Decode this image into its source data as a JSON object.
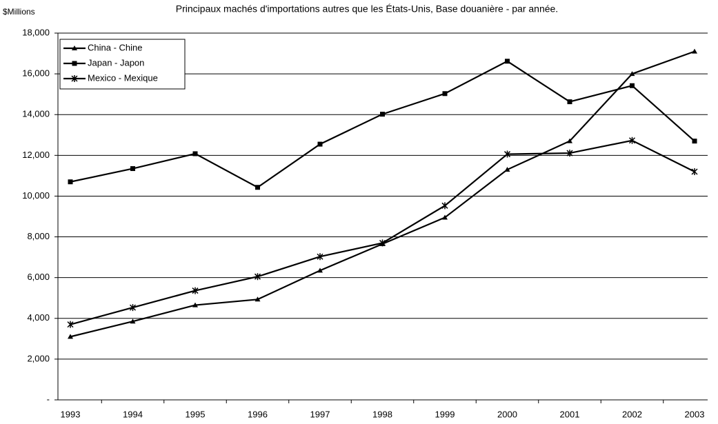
{
  "chart_data": {
    "type": "line",
    "title": "Principaux machés d'importations autres que les États-Unis,  Base douanière - par année.",
    "y_label": "$Millions",
    "categories": [
      "1993",
      "1994",
      "1995",
      "1996",
      "1997",
      "1998",
      "1999",
      "2000",
      "2001",
      "2002",
      "2003"
    ],
    "series": [
      {
        "name": "China - Chine",
        "color": "#000000",
        "marker": "triangle",
        "values": [
          3100,
          3850,
          4650,
          4930,
          6350,
          7650,
          8950,
          11300,
          12700,
          16000,
          17100
        ]
      },
      {
        "name": "Japan - Japon",
        "color": "#000000",
        "marker": "square",
        "values": [
          10700,
          11350,
          12080,
          10430,
          12550,
          14020,
          15030,
          16620,
          14630,
          15420,
          12700
        ]
      },
      {
        "name": "Mexico - Mexique",
        "color": "#000000",
        "marker": "asterisk",
        "values": [
          3700,
          4530,
          5360,
          6050,
          7030,
          7700,
          9530,
          12060,
          12110,
          12730,
          11200
        ]
      }
    ],
    "ylim": [
      0,
      18000
    ],
    "yticks": [
      {
        "value": 0,
        "label": "-"
      },
      {
        "value": 2000,
        "label": "2,000"
      },
      {
        "value": 4000,
        "label": "4,000"
      },
      {
        "value": 6000,
        "label": "6,000"
      },
      {
        "value": 8000,
        "label": "8,000"
      },
      {
        "value": 10000,
        "label": "10,000"
      },
      {
        "value": 12000,
        "label": "12,000"
      },
      {
        "value": 14000,
        "label": "14,000"
      },
      {
        "value": 16000,
        "label": "16,000"
      },
      {
        "value": 18000,
        "label": "18,000"
      }
    ],
    "grid": true,
    "legend": "upper left"
  }
}
